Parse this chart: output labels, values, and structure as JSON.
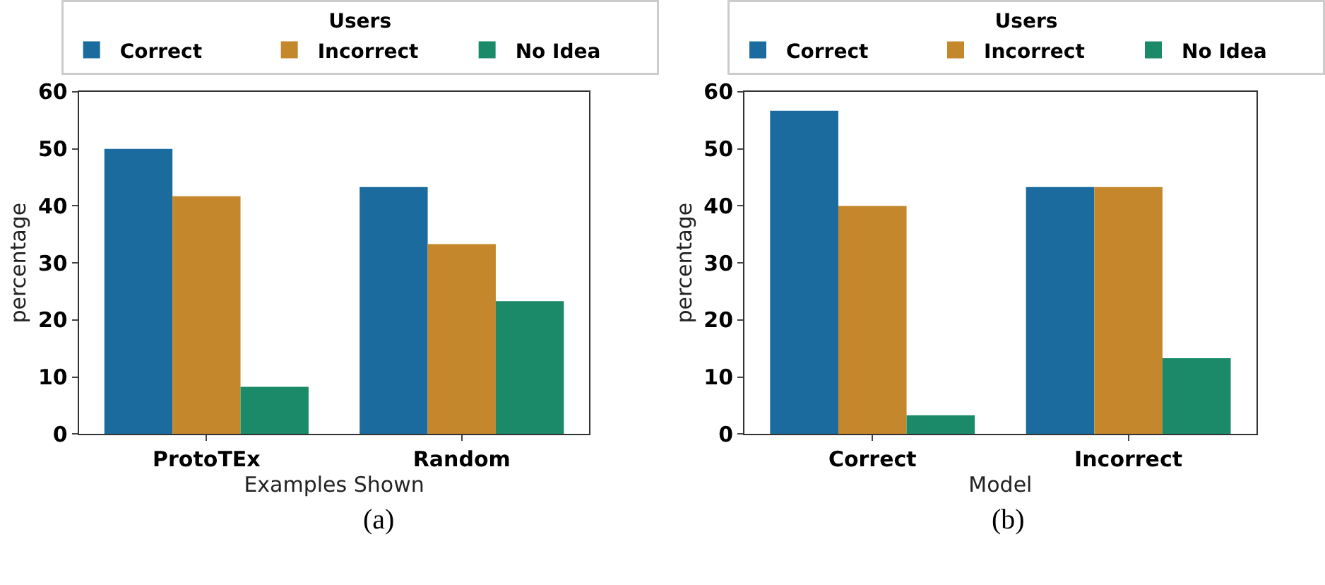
{
  "chart_data": [
    {
      "type": "bar",
      "categories": [
        "ProtoTEx",
        "Random"
      ],
      "xlabel": "Examples Shown",
      "ylabel": "percentage",
      "legend_title": "Users",
      "legend": "top",
      "ylim": [
        0,
        60
      ],
      "yticks": [
        0,
        10,
        20,
        30,
        40,
        50,
        60
      ],
      "annotations": [
        "(a)"
      ],
      "series": [
        {
          "name": "Correct",
          "color": "#1b6b9e",
          "values": [
            50.0,
            43.3
          ]
        },
        {
          "name": "Incorrect",
          "color": "#c5872c",
          "values": [
            41.7,
            33.3
          ]
        },
        {
          "name": "No Idea",
          "color": "#1a8a68",
          "values": [
            8.3,
            23.3
          ]
        }
      ]
    },
    {
      "type": "bar",
      "categories": [
        "Correct",
        "Incorrect"
      ],
      "xlabel": "Model",
      "ylabel": "percentage",
      "legend_title": "Users",
      "legend": "top",
      "ylim": [
        0,
        60
      ],
      "yticks": [
        0,
        10,
        20,
        30,
        40,
        50,
        60
      ],
      "annotations": [
        "(b)"
      ],
      "series": [
        {
          "name": "Correct",
          "color": "#1b6b9e",
          "values": [
            56.7,
            43.3
          ]
        },
        {
          "name": "Incorrect",
          "color": "#c5872c",
          "values": [
            40.0,
            43.3
          ]
        },
        {
          "name": "No Idea",
          "color": "#1a8a68",
          "values": [
            3.3,
            13.3
          ]
        }
      ]
    }
  ]
}
